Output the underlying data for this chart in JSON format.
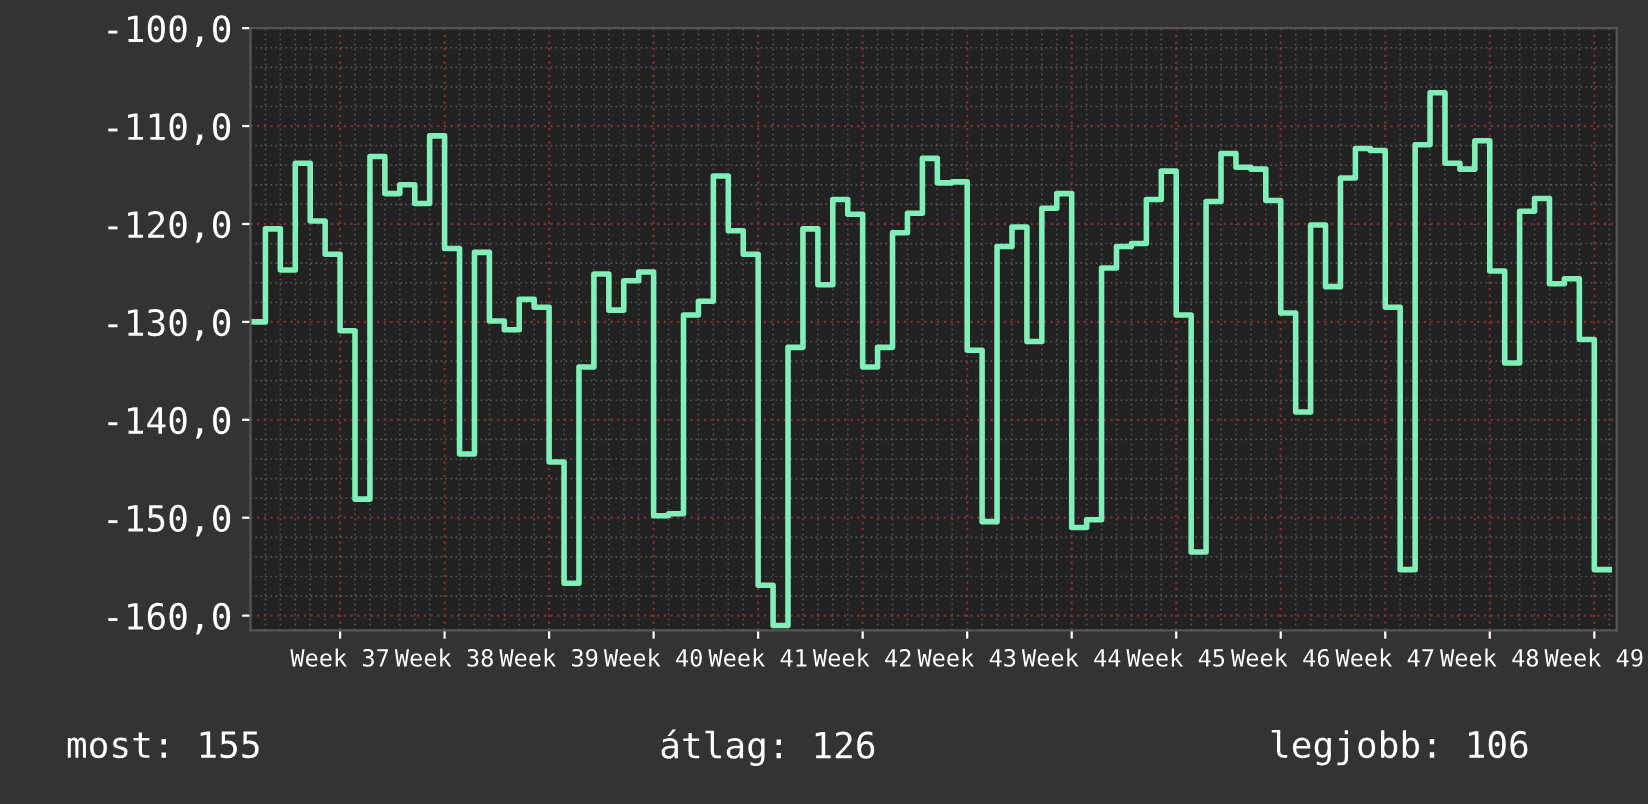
{
  "chart_data": {
    "type": "step",
    "categories": [
      null,
      null,
      null,
      null,
      null,
      null,
      "Week 37",
      null,
      null,
      null,
      null,
      null,
      null,
      "Week 38",
      null,
      null,
      null,
      null,
      null,
      null,
      "Week 39",
      null,
      null,
      null,
      null,
      null,
      null,
      "Week 40",
      null,
      null,
      null,
      null,
      null,
      null,
      "Week 41",
      null,
      null,
      null,
      null,
      null,
      null,
      "Week 42",
      null,
      null,
      null,
      null,
      null,
      null,
      "Week 43",
      null,
      null,
      null,
      null,
      null,
      null,
      "Week 44",
      null,
      null,
      null,
      null,
      null,
      null,
      "Week 45",
      null,
      null,
      null,
      null,
      null,
      null,
      "Week 46",
      null,
      null,
      null,
      null,
      null,
      null,
      "Week 47",
      null,
      null,
      null,
      null,
      null,
      null,
      "Week 48",
      null,
      null,
      null,
      null,
      null,
      null,
      "Week 49",
      null
    ],
    "series": [
      {
        "color": "#80f0b8",
        "values": [
          -130.0,
          -120.5,
          -124.7,
          -113.8,
          -119.7,
          -123.1,
          -130.9,
          -148.1,
          -113.1,
          -116.9,
          -116.0,
          -117.9,
          -111.0,
          -122.5,
          -143.5,
          -122.9,
          -129.9,
          -130.8,
          -127.7,
          -128.5,
          -144.3,
          -156.7,
          -134.6,
          -125.1,
          -128.8,
          -125.8,
          -124.9,
          -149.8,
          -149.6,
          -129.3,
          -127.9,
          -115.1,
          -120.7,
          -123.1,
          -156.9,
          -161.0,
          -132.6,
          -120.5,
          -126.2,
          -117.5,
          -119.0,
          -134.6,
          -132.6,
          -120.9,
          -118.9,
          -113.3,
          -115.8,
          -115.7,
          -132.9,
          -150.4,
          -122.3,
          -120.3,
          -132.0,
          -118.4,
          -116.9,
          -151.0,
          -150.2,
          -124.5,
          -122.3,
          -122.0,
          -117.5,
          -114.6,
          -129.3,
          -153.5,
          -117.7,
          -112.8,
          -114.2,
          -114.4,
          -117.6,
          -129.1,
          -139.2,
          -120.1,
          -126.4,
          -115.3,
          -112.3,
          -112.5,
          -128.5,
          -155.3,
          -111.9,
          -106.6,
          -113.8,
          -114.4,
          -111.5,
          -124.8,
          -134.2,
          -118.7,
          -117.4,
          -126.1,
          -125.6,
          -131.8,
          -155.3,
          -155.3
        ]
      }
    ],
    "ylim": [
      -161.5,
      -100
    ],
    "yticks": [
      {
        "value": -160,
        "label": "-160,0"
      },
      {
        "value": -150,
        "label": "-150,0"
      },
      {
        "value": -140,
        "label": "-140,0"
      },
      {
        "value": -130,
        "label": "-130,0"
      },
      {
        "value": -120,
        "label": "-120,0"
      },
      {
        "value": -110,
        "label": "-110,0"
      },
      {
        "value": -100,
        "label": "-100,0"
      }
    ],
    "grid": true,
    "annotations": [
      "most: 155",
      "átlag: 126",
      "legjobb: 106"
    ]
  }
}
